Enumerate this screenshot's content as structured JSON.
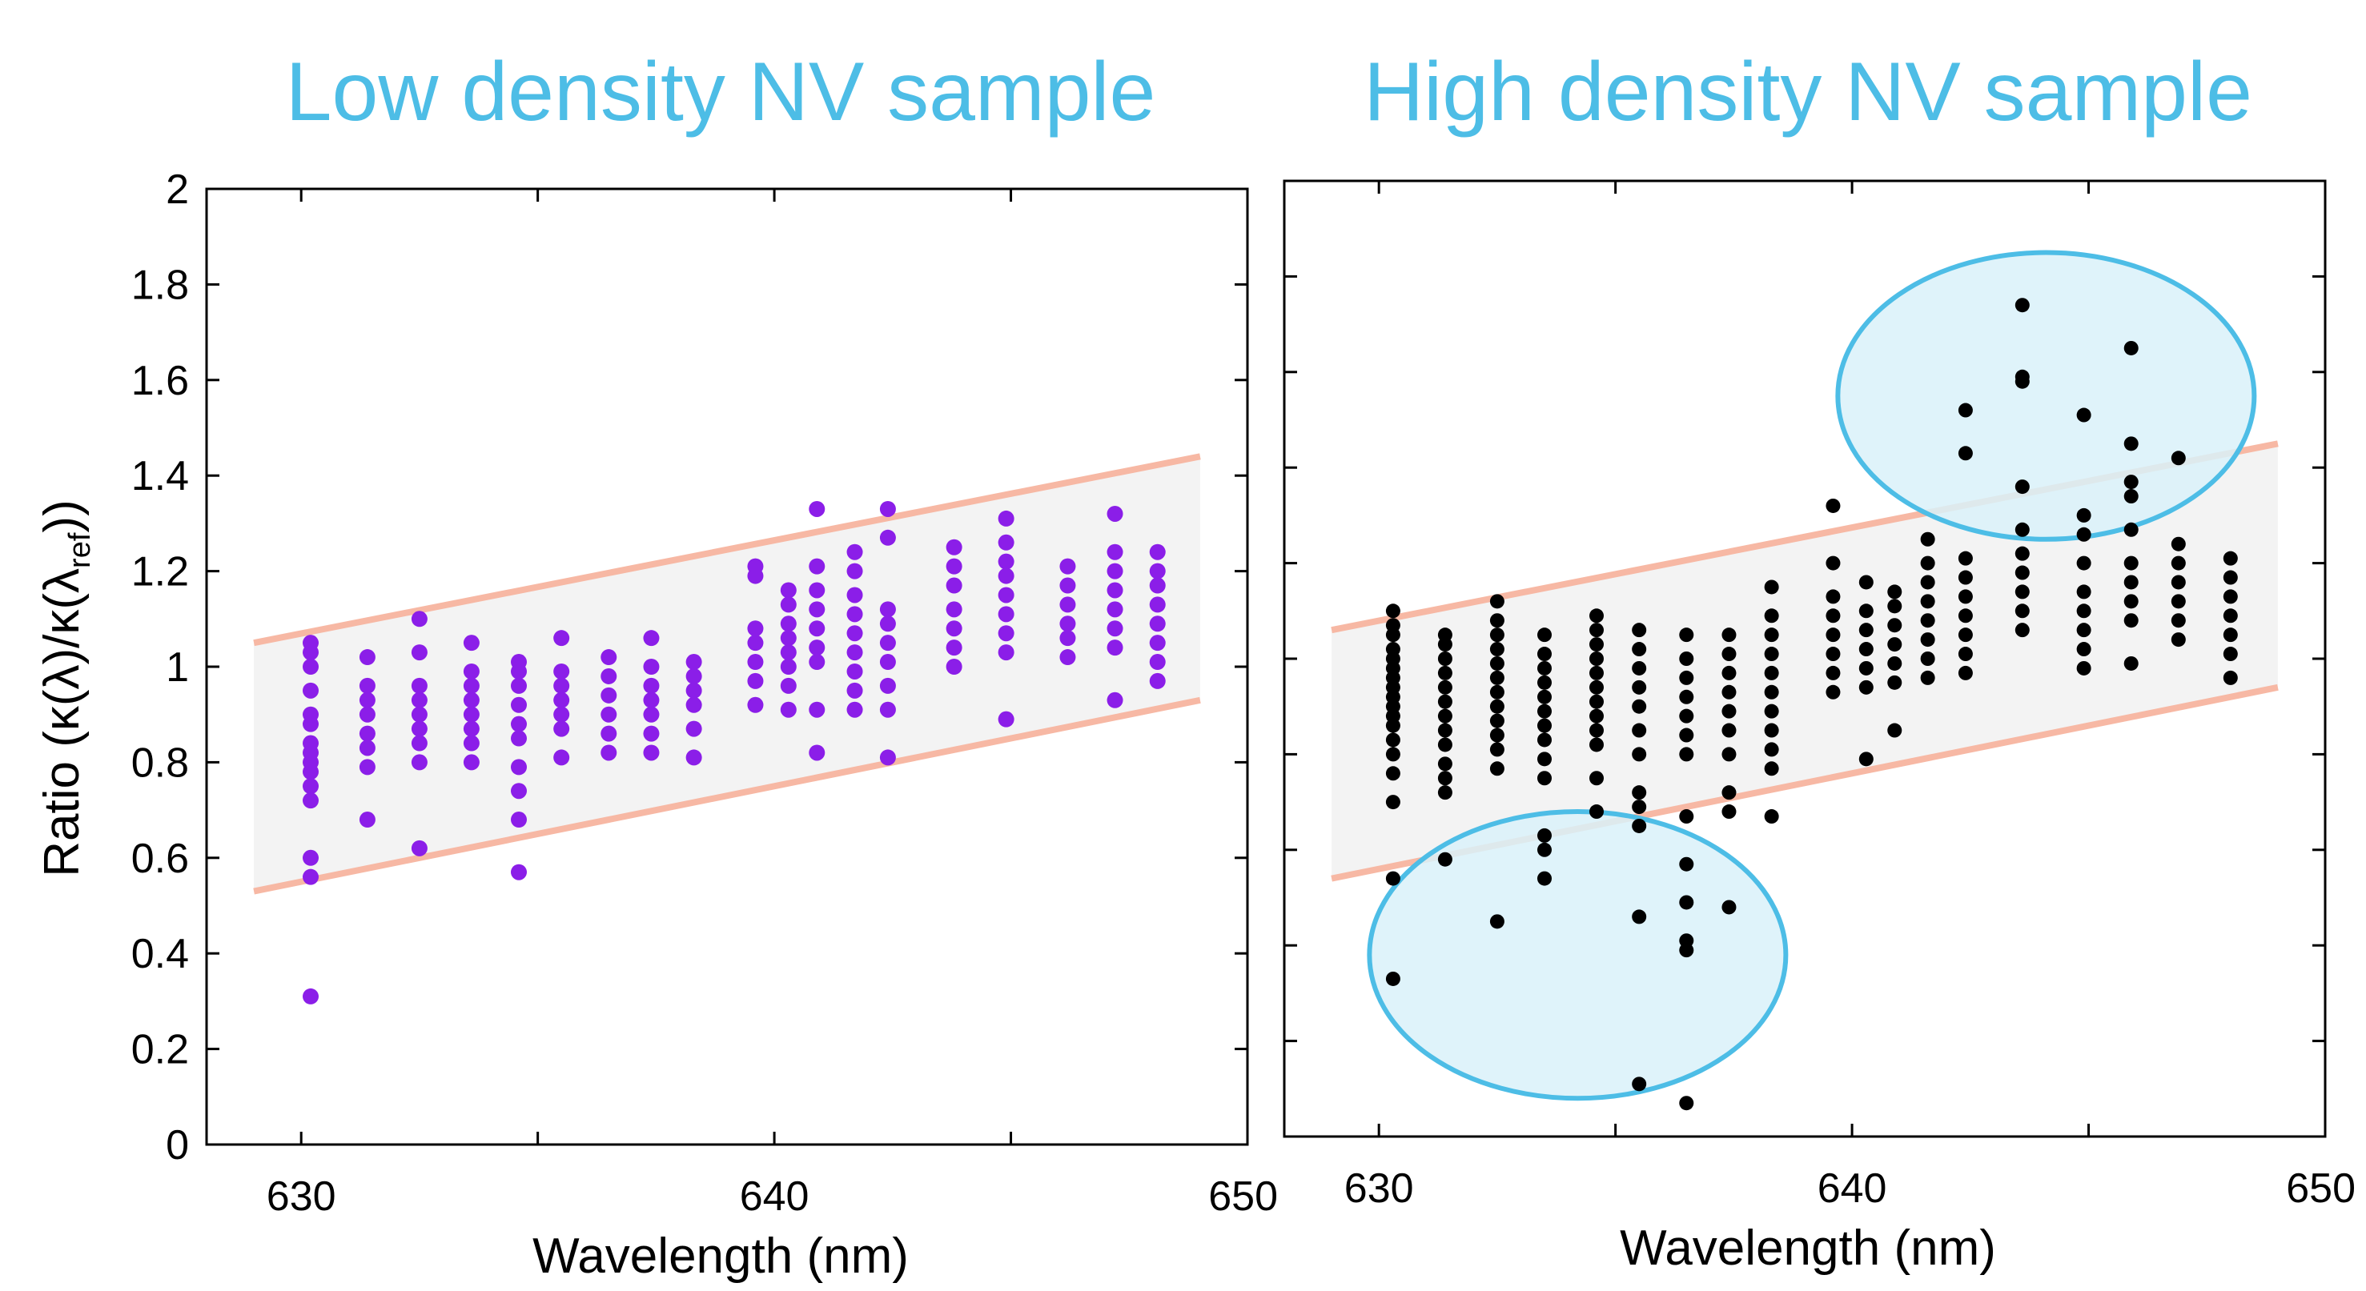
{
  "colors": {
    "title": "#4dbde6",
    "band_fill": "#f3f3f3",
    "band_edge": "#f7b8a4",
    "ellipse_fill": "#d9f1f9",
    "ellipse_stroke": "#4dbde6",
    "low_points": "#8b1ee8",
    "high_points": "#000000"
  },
  "ylabel": {
    "main": "Ratio (κ(λ)/κ(λ",
    "sub": "ref",
    "end": "))"
  },
  "chart_data": [
    {
      "type": "scatter",
      "title": "Low density NV sample",
      "xlabel": "Wavelength (nm)",
      "xlim": [
        628,
        650
      ],
      "ylim": [
        0,
        2
      ],
      "x_ticks": [
        "630",
        "640",
        "650"
      ],
      "y_ticks": [
        "0",
        "0.2",
        "0.4",
        "0.6",
        "0.8",
        "1",
        "1.2",
        "1.4",
        "1.6",
        "1.8",
        "2"
      ],
      "band": {
        "x": [
          629,
          649
        ],
        "upper": [
          1.05,
          1.44
        ],
        "lower": [
          0.53,
          0.93
        ]
      },
      "points": [
        {
          "x": 630.2,
          "y": [
            0.31,
            0.56,
            0.6,
            0.72,
            0.75,
            0.78,
            0.8,
            0.82,
            0.84,
            0.88,
            0.9,
            0.95,
            1.0,
            1.03,
            1.05
          ]
        },
        {
          "x": 631.4,
          "y": [
            0.68,
            0.79,
            0.83,
            0.86,
            0.9,
            0.93,
            0.96,
            1.02
          ]
        },
        {
          "x": 632.5,
          "y": [
            0.62,
            0.8,
            0.84,
            0.87,
            0.9,
            0.93,
            0.96,
            1.03,
            1.1
          ]
        },
        {
          "x": 633.6,
          "y": [
            0.8,
            0.84,
            0.87,
            0.9,
            0.93,
            0.96,
            0.99,
            1.05
          ]
        },
        {
          "x": 634.6,
          "y": [
            0.57,
            0.68,
            0.74,
            0.79,
            0.85,
            0.88,
            0.92,
            0.96,
            0.99,
            1.01
          ]
        },
        {
          "x": 635.5,
          "y": [
            0.81,
            0.87,
            0.9,
            0.93,
            0.96,
            0.99,
            1.06
          ]
        },
        {
          "x": 636.5,
          "y": [
            0.82,
            0.86,
            0.9,
            0.94,
            0.98,
            1.02
          ]
        },
        {
          "x": 637.4,
          "y": [
            0.82,
            0.86,
            0.9,
            0.93,
            0.96,
            1.0,
            1.06
          ]
        },
        {
          "x": 638.3,
          "y": [
            0.81,
            0.87,
            0.92,
            0.95,
            0.98,
            1.01
          ]
        },
        {
          "x": 639.6,
          "y": [
            0.92,
            0.97,
            1.01,
            1.05,
            1.08,
            1.19,
            1.21
          ]
        },
        {
          "x": 640.3,
          "y": [
            0.91,
            0.96,
            1.0,
            1.03,
            1.06,
            1.09,
            1.13,
            1.16
          ]
        },
        {
          "x": 640.9,
          "y": [
            0.82,
            0.91,
            1.01,
            1.04,
            1.08,
            1.12,
            1.16,
            1.21,
            1.33
          ]
        },
        {
          "x": 641.7,
          "y": [
            0.91,
            0.95,
            0.99,
            1.03,
            1.07,
            1.11,
            1.15,
            1.2,
            1.24
          ]
        },
        {
          "x": 642.4,
          "y": [
            0.81,
            0.91,
            0.96,
            1.01,
            1.05,
            1.09,
            1.12,
            1.27,
            1.33
          ]
        },
        {
          "x": 643.8,
          "y": [
            1.0,
            1.04,
            1.08,
            1.12,
            1.17,
            1.21,
            1.25
          ]
        },
        {
          "x": 644.9,
          "y": [
            0.89,
            1.03,
            1.07,
            1.11,
            1.15,
            1.19,
            1.22,
            1.26,
            1.31
          ]
        },
        {
          "x": 646.2,
          "y": [
            1.02,
            1.06,
            1.09,
            1.13,
            1.17,
            1.21
          ]
        },
        {
          "x": 647.2,
          "y": [
            0.93,
            1.04,
            1.08,
            1.12,
            1.16,
            1.2,
            1.24,
            1.32
          ]
        },
        {
          "x": 648.1,
          "y": [
            0.97,
            1.01,
            1.05,
            1.09,
            1.13,
            1.17,
            1.2,
            1.24
          ]
        }
      ]
    },
    {
      "type": "scatter",
      "title": "High density NV sample",
      "xlabel": "Wavelength (nm)",
      "xlim": [
        628,
        650
      ],
      "ylim": [
        0,
        2
      ],
      "x_ticks": [
        "630",
        "640",
        "650"
      ],
      "band": {
        "x": [
          629,
          649
        ],
        "upper": [
          1.06,
          1.45
        ],
        "lower": [
          0.54,
          0.94
        ]
      },
      "ellipses": [
        {
          "cx": 634.2,
          "cy": 0.38,
          "rx": 4.4,
          "ry": 0.3
        },
        {
          "cx": 644.1,
          "cy": 1.55,
          "rx": 4.4,
          "ry": 0.3
        }
      ],
      "points": [
        {
          "x": 630.3,
          "y": [
            0.33,
            0.54,
            0.7,
            0.76,
            0.8,
            0.83,
            0.86,
            0.88,
            0.9,
            0.92,
            0.94,
            0.96,
            0.98,
            1.0,
            1.02,
            1.05,
            1.07,
            1.1
          ]
        },
        {
          "x": 631.4,
          "y": [
            0.58,
            0.72,
            0.75,
            0.78,
            0.82,
            0.85,
            0.88,
            0.91,
            0.94,
            0.97,
            1.0,
            1.03,
            1.05
          ]
        },
        {
          "x": 632.5,
          "y": [
            0.45,
            0.77,
            0.81,
            0.84,
            0.87,
            0.9,
            0.93,
            0.96,
            0.99,
            1.02,
            1.05,
            1.08,
            1.12
          ]
        },
        {
          "x": 633.5,
          "y": [
            0.54,
            0.6,
            0.63,
            0.75,
            0.79,
            0.83,
            0.86,
            0.89,
            0.92,
            0.95,
            0.98,
            1.01,
            1.05
          ]
        },
        {
          "x": 634.6,
          "y": [
            0.68,
            0.75,
            0.82,
            0.85,
            0.88,
            0.91,
            0.94,
            0.97,
            1.0,
            1.03,
            1.06,
            1.09
          ]
        },
        {
          "x": 635.5,
          "y": [
            0.11,
            0.46,
            0.65,
            0.69,
            0.72,
            0.8,
            0.85,
            0.9,
            0.94,
            0.98,
            1.02,
            1.06
          ]
        },
        {
          "x": 636.5,
          "y": [
            0.07,
            0.39,
            0.41,
            0.49,
            0.57,
            0.67,
            0.8,
            0.84,
            0.88,
            0.92,
            0.96,
            1.0,
            1.05
          ]
        },
        {
          "x": 637.4,
          "y": [
            0.48,
            0.68,
            0.72,
            0.8,
            0.85,
            0.89,
            0.93,
            0.97,
            1.01,
            1.05
          ]
        },
        {
          "x": 638.3,
          "y": [
            0.67,
            0.77,
            0.81,
            0.85,
            0.89,
            0.93,
            0.97,
            1.01,
            1.05,
            1.09,
            1.15
          ]
        },
        {
          "x": 639.6,
          "y": [
            0.93,
            0.97,
            1.01,
            1.05,
            1.09,
            1.13,
            1.2,
            1.32
          ]
        },
        {
          "x": 640.3,
          "y": [
            0.79,
            0.94,
            0.98,
            1.02,
            1.06,
            1.1,
            1.16
          ]
        },
        {
          "x": 640.9,
          "y": [
            0.85,
            0.95,
            0.99,
            1.03,
            1.07,
            1.11,
            1.14
          ]
        },
        {
          "x": 641.6,
          "y": [
            0.96,
            1.0,
            1.04,
            1.08,
            1.12,
            1.16,
            1.2,
            1.25
          ]
        },
        {
          "x": 642.4,
          "y": [
            0.97,
            1.01,
            1.05,
            1.09,
            1.13,
            1.17,
            1.21,
            1.43,
            1.52
          ]
        },
        {
          "x": 643.6,
          "y": [
            1.06,
            1.1,
            1.14,
            1.18,
            1.22,
            1.27,
            1.36,
            1.58,
            1.59,
            1.74
          ]
        },
        {
          "x": 644.9,
          "y": [
            0.98,
            1.02,
            1.06,
            1.1,
            1.14,
            1.2,
            1.26,
            1.3,
            1.51
          ]
        },
        {
          "x": 645.9,
          "y": [
            0.99,
            1.08,
            1.12,
            1.16,
            1.2,
            1.27,
            1.34,
            1.37,
            1.45,
            1.65
          ]
        },
        {
          "x": 646.9,
          "y": [
            1.04,
            1.08,
            1.12,
            1.16,
            1.2,
            1.24,
            1.42
          ]
        },
        {
          "x": 648.0,
          "y": [
            0.96,
            1.01,
            1.05,
            1.09,
            1.13,
            1.17,
            1.21
          ]
        }
      ]
    }
  ]
}
